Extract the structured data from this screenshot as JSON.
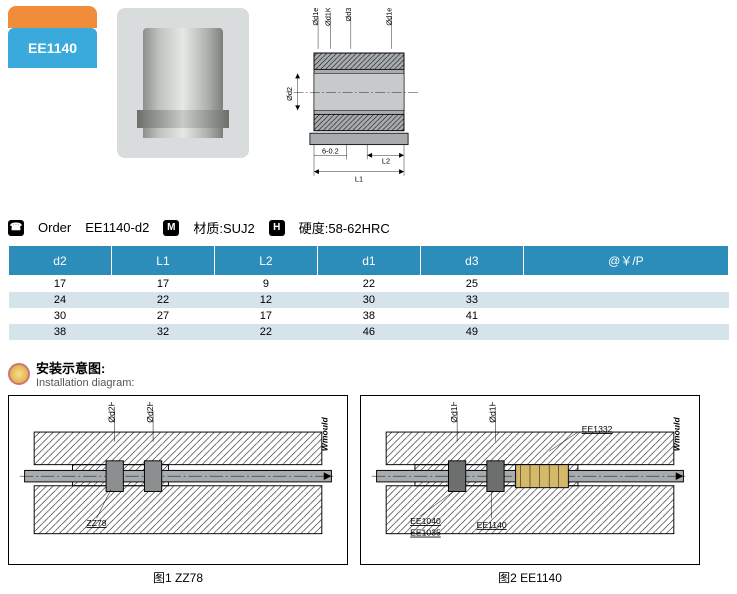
{
  "header": {
    "part_no": "EE1140"
  },
  "order_line": {
    "order_label": "Order",
    "order_code": "EE1140-d2",
    "material_label": "材质:SUJ2",
    "hardness_label": "硬度:58-62HRC"
  },
  "spec_table": {
    "columns": [
      "d2",
      "L1",
      "L2",
      "d1",
      "d3",
      "@￥/P"
    ],
    "rows": [
      [
        "17",
        "17",
        "9",
        "22",
        "25",
        ""
      ],
      [
        "24",
        "22",
        "12",
        "30",
        "33",
        ""
      ],
      [
        "30",
        "27",
        "17",
        "38",
        "41",
        ""
      ],
      [
        "38",
        "32",
        "22",
        "46",
        "49",
        ""
      ]
    ],
    "header_bg": "#2c8cba",
    "header_fg": "#ffffff",
    "row_alt_bg": "#d6e3ea"
  },
  "install": {
    "title_cn": "安装示意图:",
    "title_en": "Installation diagram:"
  },
  "tech_diagram": {
    "labels": {
      "d1e7_left": "Ød1e7",
      "d1K6": "Ød1K6",
      "d3": "Ød3",
      "d1e7_right": "Ød1e7",
      "d2": "Ød2",
      "tol": "6-0.2",
      "L2": "L2",
      "L1": "L1"
    },
    "style": {
      "fill": "#a8acae",
      "hatch": "#000000",
      "stroke": "#000000"
    }
  },
  "install_diagrams": {
    "fig1": {
      "caption": "图1  ZZ78",
      "labels": {
        "d2H7_a": "Ød2H7",
        "d2H7_b": "Ød2H7",
        "watermark": "Wmould",
        "zz78": "ZZ78"
      }
    },
    "fig2": {
      "caption": "图2  EE1140",
      "labels": {
        "d1H7_a": "Ød1H7",
        "d1H7_b": "Ød1H7",
        "watermark": "Wmould",
        "ee1332": "EE1332",
        "ee1040": "EE1040",
        "ee1035": "EE1035",
        "ee1140": "EE1140"
      }
    },
    "style": {
      "hatch_bg": "#ffffff",
      "shaft_fill": "#a8acae",
      "stroke": "#000000"
    }
  }
}
